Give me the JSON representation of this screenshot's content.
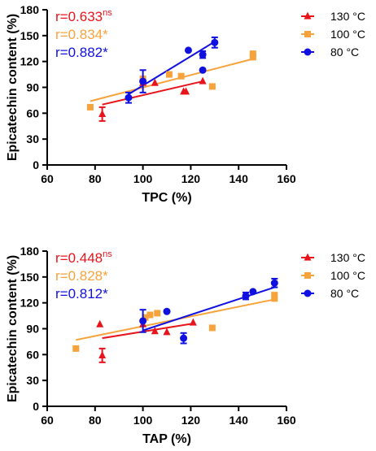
{
  "chart_data": [
    {
      "type": "scatter",
      "panel": "top",
      "xlabel": "TPC (%)",
      "ylabel": "Epicatechin content (%)",
      "xlim": [
        60,
        160
      ],
      "ylim": [
        0,
        180
      ],
      "xticks": [
        "60",
        "80",
        "100",
        "120",
        "140",
        "160"
      ],
      "yticks": [
        "0",
        "30",
        "60",
        "90",
        "120",
        "150",
        "180"
      ],
      "legend": "top-right",
      "series": [
        {
          "name": "130 °C",
          "color": "#e8141c",
          "marker": "triangle",
          "points": [
            [
              83,
              59
            ],
            [
              100,
              95
            ],
            [
              105,
              95
            ],
            [
              117,
              85
            ],
            [
              118,
              85
            ],
            [
              125,
              97
            ]
          ],
          "errors": [
            8,
            0,
            0,
            0,
            0,
            0
          ],
          "fit": [
            [
              83,
              70
            ],
            [
              125,
              97
            ]
          ],
          "r_value": "r=0.633",
          "r_sup": "ns"
        },
        {
          "name": "100 °C",
          "color": "#f7a33c",
          "marker": "square",
          "points": [
            [
              78,
              67
            ],
            [
              100,
              100
            ],
            [
              111,
              105
            ],
            [
              116,
              103
            ],
            [
              129,
              91
            ],
            [
              146,
              129
            ],
            [
              146,
              125
            ]
          ],
          "errors": [
            0,
            0,
            0,
            0,
            0,
            0,
            0
          ],
          "fit": [
            [
              78,
              74
            ],
            [
              146,
              123
            ]
          ],
          "r_value": "r=0.834*",
          "r_sup": ""
        },
        {
          "name": "80 °C",
          "color": "#1010e0",
          "marker": "circle",
          "points": [
            [
              94,
              78
            ],
            [
              100,
              97
            ],
            [
              119,
              133
            ],
            [
              125,
              110
            ],
            [
              125,
              128
            ],
            [
              130,
              142
            ]
          ],
          "errors": [
            6,
            13,
            0,
            0,
            4,
            6
          ],
          "fit": [
            [
              94,
              82
            ],
            [
              130,
              143
            ]
          ],
          "r_value": "r=0.882*",
          "r_sup": ""
        }
      ]
    },
    {
      "type": "scatter",
      "panel": "bottom",
      "xlabel": "TAP (%)",
      "ylabel": "Epicatechin content (%)",
      "xlim": [
        60,
        160
      ],
      "ylim": [
        0,
        180
      ],
      "xticks": [
        "60",
        "80",
        "100",
        "120",
        "140",
        "160"
      ],
      "yticks": [
        "0",
        "30",
        "60",
        "90",
        "120",
        "150",
        "180"
      ],
      "legend": "top-right",
      "series": [
        {
          "name": "130 °C",
          "color": "#e8141c",
          "marker": "triangle",
          "points": [
            [
              82,
              95
            ],
            [
              83,
              59
            ],
            [
              100,
              95
            ],
            [
              105,
              87
            ],
            [
              110,
              86
            ],
            [
              121,
              97
            ]
          ],
          "errors": [
            0,
            8,
            0,
            0,
            0,
            0
          ],
          "fit": [
            [
              83,
              79
            ],
            [
              121,
              96
            ]
          ],
          "r_value": "r=0.448",
          "r_sup": "ns"
        },
        {
          "name": "100 °C",
          "color": "#f7a33c",
          "marker": "square",
          "points": [
            [
              72,
              67
            ],
            [
              101,
              103
            ],
            [
              103,
              106
            ],
            [
              106,
              108
            ],
            [
              129,
              91
            ],
            [
              155,
              129
            ],
            [
              155,
              125
            ]
          ],
          "errors": [
            0,
            0,
            0,
            0,
            0,
            0,
            0
          ],
          "fit": [
            [
              72,
              77
            ],
            [
              155,
              124
            ]
          ],
          "r_value": "r=0.828*",
          "r_sup": ""
        },
        {
          "name": "80 °C",
          "color": "#1010e0",
          "marker": "circle",
          "points": [
            [
              100,
              99
            ],
            [
              110,
              110
            ],
            [
              117,
              79
            ],
            [
              143,
              128
            ],
            [
              146,
              133
            ],
            [
              155,
              143
            ]
          ],
          "errors": [
            13,
            0,
            6,
            4,
            0,
            5
          ],
          "fit": [
            [
              100,
              88
            ],
            [
              155,
              138
            ]
          ],
          "r_value": "r=0.812*",
          "r_sup": ""
        }
      ]
    }
  ]
}
